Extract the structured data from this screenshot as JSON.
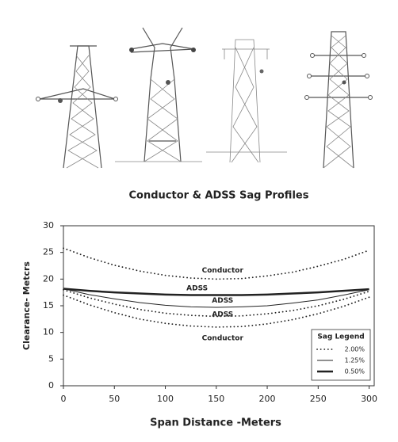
{
  "chart_data": {
    "type": "line",
    "title": "Conductor & ADSS Sag Profiles",
    "xlabel": "Span Distance -Meters",
    "ylabel": "Clearance- Metcrs",
    "x": [
      0,
      25,
      50,
      75,
      100,
      125,
      150,
      175,
      200,
      225,
      250,
      275,
      300
    ],
    "series": [
      {
        "name": "Conductor",
        "style": "dotted",
        "color": "#222",
        "values": [
          25.8,
          24.05,
          22.6,
          21.5,
          20.7,
          20.2,
          20.0,
          20.1,
          20.6,
          21.3,
          22.4,
          23.7,
          25.4
        ]
      },
      {
        "name": "ADSS",
        "style": "thick",
        "color": "#222",
        "values": [
          18.2,
          17.8,
          17.5,
          17.3,
          17.1,
          17.0,
          17.0,
          17.0,
          17.1,
          17.3,
          17.5,
          17.8,
          18.1
        ]
      },
      {
        "name": "ADSS",
        "style": "thin",
        "color": "#222",
        "values": [
          18.2,
          17.1,
          16.3,
          15.6,
          15.1,
          14.8,
          14.7,
          14.8,
          15.0,
          15.5,
          16.1,
          17.0,
          18.0
        ]
      },
      {
        "name": "ADSS",
        "style": "dotted",
        "color": "#222",
        "values": [
          18.0,
          16.5,
          15.3,
          14.3,
          13.6,
          13.2,
          13.0,
          13.1,
          13.5,
          14.1,
          15.0,
          16.2,
          17.7
        ]
      },
      {
        "name": "Conductor",
        "style": "dotted",
        "color": "#222",
        "values": [
          17.0,
          15.2,
          13.7,
          12.5,
          11.7,
          11.2,
          11.0,
          11.1,
          11.6,
          12.4,
          13.5,
          14.9,
          16.6
        ]
      }
    ],
    "xlim": [
      0,
      305
    ],
    "xticks": [
      0,
      50,
      100,
      150,
      200,
      250,
      300
    ],
    "ylim": [
      0,
      30
    ],
    "yticks": [
      0,
      5,
      10,
      15,
      20,
      25,
      30
    ],
    "legend": {
      "title": "Sag Legend",
      "position": "lower right",
      "entries": [
        {
          "label": "2.00%",
          "style": "dotted"
        },
        {
          "label": "1.25%",
          "style": "thin"
        },
        {
          "label": "0.50%",
          "style": "thick"
        }
      ]
    }
  }
}
